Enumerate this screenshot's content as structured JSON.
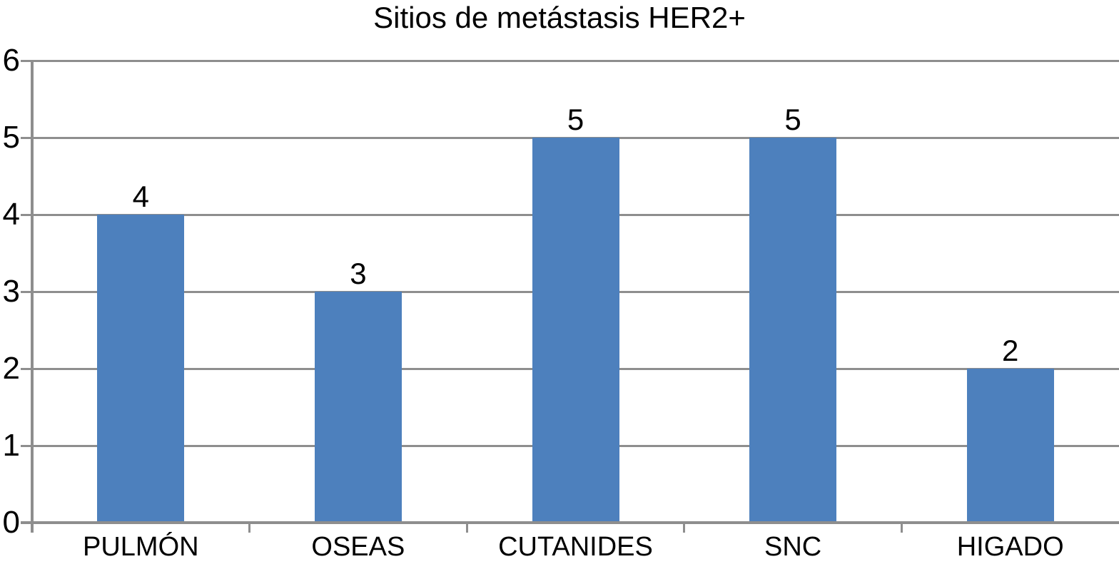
{
  "chart_data": {
    "type": "bar",
    "title": "Sitios de metástasis HER2+",
    "categories": [
      "PULMÓN",
      "OSEAS",
      "CUTANIDES",
      "SNC",
      "HIGADO"
    ],
    "values": [
      4,
      3,
      5,
      5,
      2
    ],
    "data_labels": [
      "4",
      "3",
      "5",
      "5",
      "2"
    ],
    "xlabel": "",
    "ylabel": "",
    "ylim": [
      0,
      6
    ],
    "yticks": [
      0,
      1,
      2,
      3,
      4,
      5,
      6
    ],
    "grid": "horizontal",
    "legend": "none",
    "colors": {
      "bar": "#4d80bd",
      "grid": "#8e8e8e",
      "axis": "#8e8e8e",
      "text": "#000000",
      "background": "#ffffff"
    }
  }
}
